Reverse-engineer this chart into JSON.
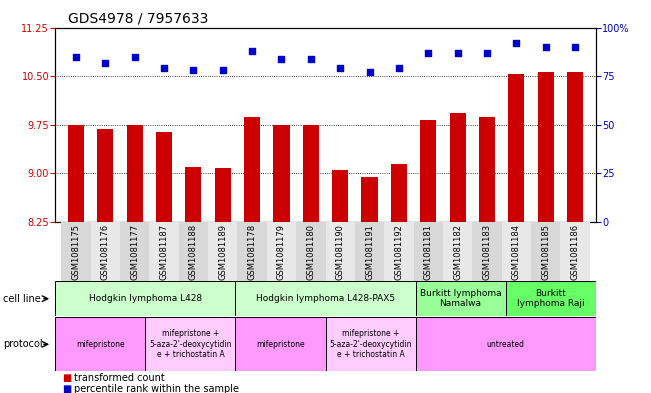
{
  "title": "GDS4978 / 7957633",
  "samples": [
    "GSM1081175",
    "GSM1081176",
    "GSM1081177",
    "GSM1081187",
    "GSM1081188",
    "GSM1081189",
    "GSM1081178",
    "GSM1081179",
    "GSM1081180",
    "GSM1081190",
    "GSM1081191",
    "GSM1081192",
    "GSM1081181",
    "GSM1081182",
    "GSM1081183",
    "GSM1081184",
    "GSM1081185",
    "GSM1081186"
  ],
  "bar_values": [
    9.75,
    9.68,
    9.75,
    9.64,
    9.1,
    9.08,
    9.87,
    9.75,
    9.75,
    9.06,
    8.95,
    9.15,
    9.83,
    9.93,
    9.87,
    10.54,
    10.57,
    10.57
  ],
  "dot_values": [
    85,
    82,
    85,
    79,
    78,
    78,
    88,
    84,
    84,
    79,
    77,
    79,
    87,
    87,
    87,
    92,
    90,
    90
  ],
  "ylim_left": [
    8.25,
    11.25
  ],
  "ylim_right": [
    0,
    100
  ],
  "yticks_left": [
    8.25,
    9.0,
    9.75,
    10.5,
    11.25
  ],
  "yticks_right": [
    0,
    25,
    50,
    75,
    100
  ],
  "bar_color": "#cc0000",
  "dot_color": "#0000cc",
  "cell_line_groups": [
    {
      "label": "Hodgkin lymphoma L428",
      "start": 0,
      "end": 6,
      "color": "#ccffcc"
    },
    {
      "label": "Hodgkin lymphoma L428-PAX5",
      "start": 6,
      "end": 12,
      "color": "#ccffcc"
    },
    {
      "label": "Burkitt lymphoma\nNamalwa",
      "start": 12,
      "end": 15,
      "color": "#99ff99"
    },
    {
      "label": "Burkitt\nlymphoma Raji",
      "start": 15,
      "end": 18,
      "color": "#66ff66"
    }
  ],
  "protocol_groups": [
    {
      "label": "mifepristone",
      "start": 0,
      "end": 3,
      "color": "#ff99ff"
    },
    {
      "label": "mifepristone +\n5-aza-2'-deoxycytidin\ne + trichostatin A",
      "start": 3,
      "end": 6,
      "color": "#ffccff"
    },
    {
      "label": "mifepristone",
      "start": 6,
      "end": 9,
      "color": "#ff99ff"
    },
    {
      "label": "mifepristone +\n5-aza-2'-deoxycytidin\ne + trichostatin A",
      "start": 9,
      "end": 12,
      "color": "#ffccff"
    },
    {
      "label": "untreated",
      "start": 12,
      "end": 18,
      "color": "#ff99ff"
    }
  ],
  "legend_items": [
    {
      "label": "transformed count",
      "color": "#cc0000"
    },
    {
      "label": "percentile rank within the sample",
      "color": "#0000cc"
    }
  ],
  "background_color": "#ffffff",
  "title_fontsize": 10,
  "tick_fontsize": 7,
  "label_fontsize": 7.5
}
